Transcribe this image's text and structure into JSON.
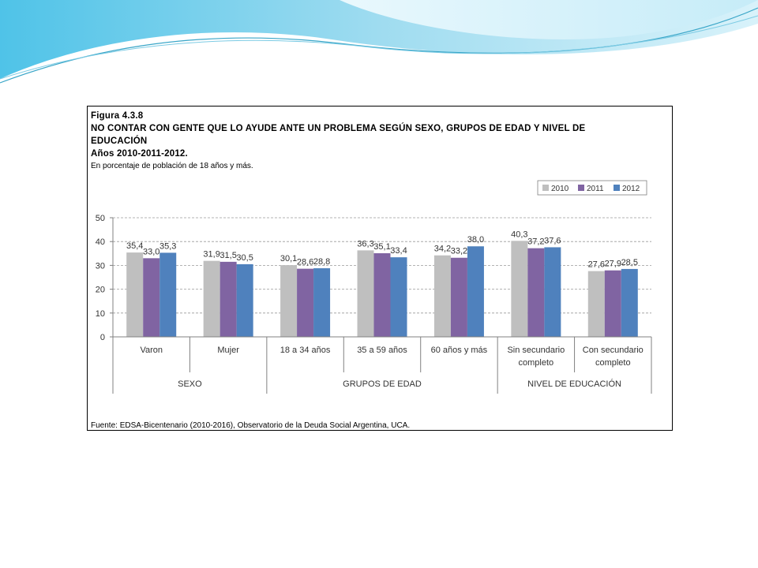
{
  "figure": {
    "number": "Figura 4.3.8",
    "title_line1": "NO CONTAR CON GENTE QUE LO AYUDE ANTE UN PROBLEMA SEGÚN SEXO, GRUPOS DE EDAD Y NIVEL DE",
    "title_line2": "EDUCACIÓN",
    "years": "Años 2010-2011-2012.",
    "subtitle": "En porcentaje de población de 18 años y más.",
    "source": "Fuente: EDSA-Bicentenario (2010-2016), Observatorio de la Deuda Social Argentina, UCA."
  },
  "chart_data": {
    "type": "bar",
    "categories": [
      [
        "Varon"
      ],
      [
        "Mujer"
      ],
      [
        "18 a 34 años"
      ],
      [
        "35 a 59 años"
      ],
      [
        "60 años y más"
      ],
      [
        "Sin secundario",
        "completo"
      ],
      [
        "Con secundario",
        "completo"
      ]
    ],
    "groups": [
      {
        "label": "SEXO",
        "categories": 2
      },
      {
        "label": "GRUPOS DE EDAD",
        "categories": 3
      },
      {
        "label": "NIVEL DE EDUCACIÓN",
        "categories": 2
      }
    ],
    "series": [
      {
        "name": "2010",
        "color": "#bfbfbf",
        "values": [
          35.4,
          31.9,
          30.1,
          36.3,
          34.2,
          40.3,
          27.6
        ],
        "labels": [
          "35,4",
          "31,9",
          "30,1",
          "36,3",
          "34,2",
          "40,3",
          "27,6"
        ]
      },
      {
        "name": "2011",
        "color": "#8064a2",
        "values": [
          33.0,
          31.5,
          28.6,
          35.1,
          33.2,
          37.2,
          27.9
        ],
        "labels": [
          "33,0",
          "31,5",
          "28,6",
          "35,1",
          "33,2",
          "37,2",
          "27,9"
        ]
      },
      {
        "name": "2012",
        "color": "#4f81bd",
        "values": [
          35.3,
          30.5,
          28.8,
          33.4,
          38.0,
          37.6,
          28.5
        ],
        "labels": [
          "35,3",
          "30,5",
          "28,8",
          "33,4",
          "38,0",
          "37,6",
          "28,5"
        ]
      }
    ],
    "ylim": [
      0,
      50
    ],
    "yticks": [
      0,
      10,
      20,
      30,
      40,
      50
    ],
    "grid": true,
    "legend": "top-right"
  }
}
